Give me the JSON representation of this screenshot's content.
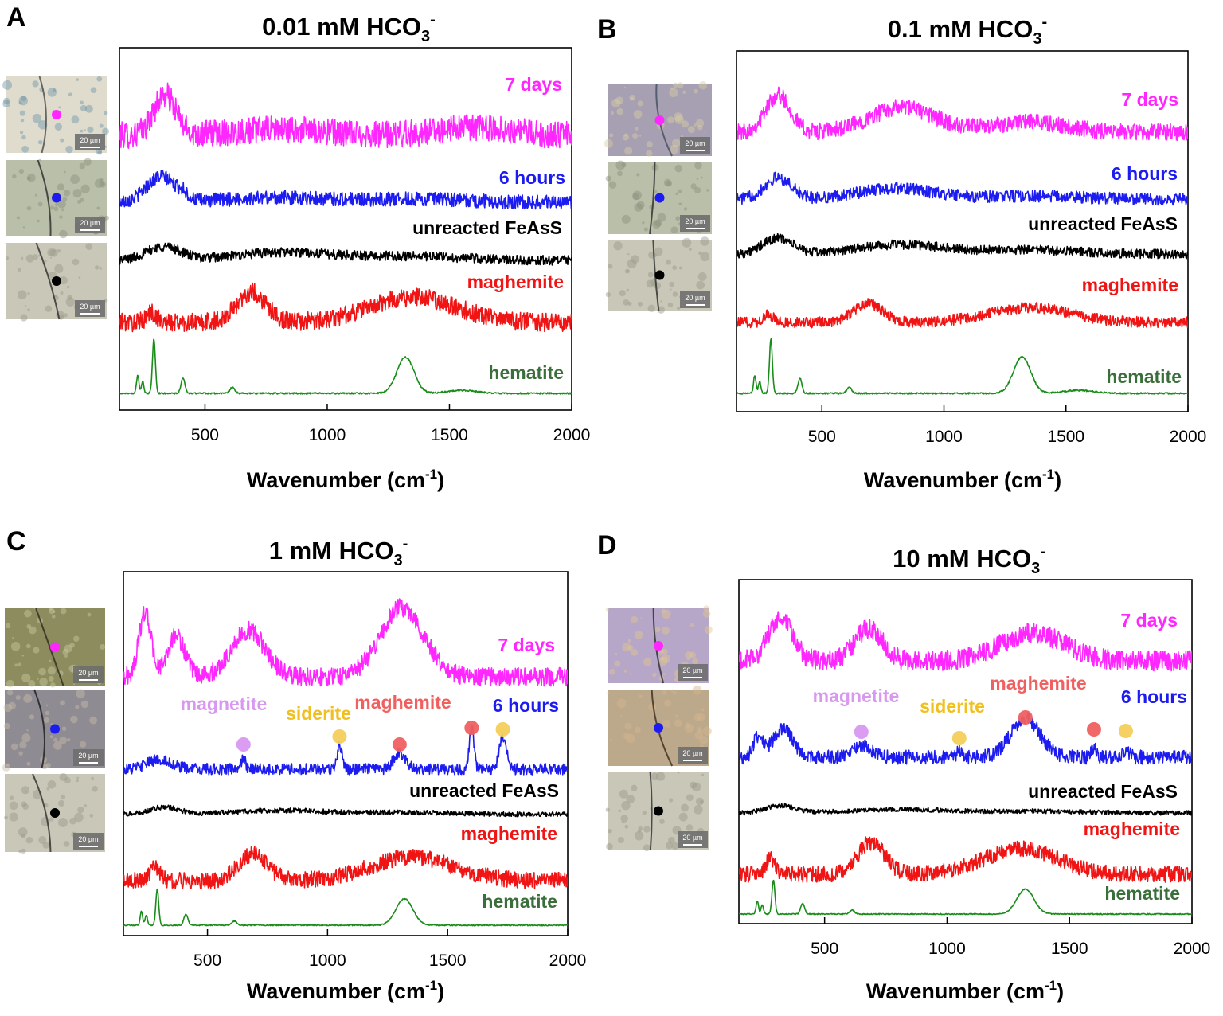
{
  "colors": {
    "7 days": "#ff26ff",
    "6 hours": "#1c1cf0",
    "unreacted FeAsS": "#000000",
    "maghemite": "#f01414",
    "hematite": "#1a8c1a",
    "hematite_label": "#3a6e3a",
    "marker_magnetite": "#d898f0",
    "marker_siderite": "#f3cf5a",
    "marker_maghemite": "#f06060"
  },
  "chart_data": [
    {
      "type": "line",
      "panel": "A",
      "title": "0.01 mM HCO3-",
      "title_main": "0.01 mM HCO",
      "title_sub": "3",
      "title_sup": "-",
      "xlabel_main": "Wavenumber (cm",
      "xlabel_sup": "-1",
      "xlabel_tail": ")",
      "xlim": [
        150,
        2000
      ],
      "xticks": [
        500,
        1000,
        1500,
        2000
      ],
      "y_axis": "arbitrary offset intensity (no ticks)",
      "series": [
        {
          "name": "7 days",
          "peaks": [
            [
              335,
              1.0,
              45
            ],
            [
              800,
              0.15,
              200
            ],
            [
              1600,
              0.2,
              150
            ]
          ],
          "noise": 0.34
        },
        {
          "name": "6 hours",
          "peaks": [
            [
              320,
              0.8,
              60
            ],
            [
              410,
              0.15,
              15
            ],
            [
              800,
              0.15,
              200
            ],
            [
              1350,
              0.1,
              200
            ]
          ],
          "noise": 0.22
        },
        {
          "name": "unreacted FeAsS",
          "peaks": [
            [
              330,
              0.5,
              70
            ],
            [
              830,
              0.3,
              200
            ],
            [
              1350,
              0.15,
              200
            ]
          ],
          "noise": 0.18
        },
        {
          "name": "maghemite",
          "peaks": [
            [
              280,
              0.3,
              20
            ],
            [
              690,
              0.9,
              60
            ],
            [
              1350,
              0.75,
              180
            ]
          ],
          "noise": 0.28
        },
        {
          "name": "hematite",
          "peaks": [
            [
              225,
              0.6,
              5
            ],
            [
              245,
              0.4,
              5
            ],
            [
              291,
              1.8,
              6
            ],
            [
              410,
              0.5,
              8
            ],
            [
              612,
              0.2,
              10
            ],
            [
              1320,
              1.2,
              35
            ],
            [
              1550,
              0.1,
              60
            ]
          ],
          "noise": 0.025
        }
      ],
      "labels": [
        {
          "text": "7 days",
          "series": "7 days"
        },
        {
          "text": "6 hours",
          "series": "6 hours"
        },
        {
          "text": "unreacted FeAsS",
          "series": "unreacted FeAsS"
        },
        {
          "text": "maghemite",
          "series": "maghemite"
        },
        {
          "text": "hematite",
          "series": "hematite"
        }
      ],
      "markers": [],
      "annotations": [],
      "insets": [
        {
          "scale": "20 µm",
          "dot": "7 days",
          "theme": "A1"
        },
        {
          "scale": "20 µm",
          "dot": "6 hours",
          "theme": "A2"
        },
        {
          "scale": "20 µm",
          "dot": "unreacted FeAsS",
          "theme": "A3"
        }
      ]
    },
    {
      "type": "line",
      "panel": "B",
      "title": "0.1 mM HCO3-",
      "title_main": "0.1 mM HCO",
      "title_sub": "3",
      "title_sup": "-",
      "xlabel_main": "Wavenumber (cm",
      "xlabel_sup": "-1",
      "xlabel_tail": ")",
      "xlim": [
        150,
        2000
      ],
      "xticks": [
        500,
        1000,
        1500,
        2000
      ],
      "y_axis": "arbitrary offset intensity (no ticks)",
      "series": [
        {
          "name": "7 days",
          "peaks": [
            [
              320,
              0.9,
              50
            ],
            [
              830,
              0.6,
              130
            ],
            [
              1350,
              0.25,
              150
            ]
          ],
          "noise": 0.2
        },
        {
          "name": "6 hours",
          "peaks": [
            [
              320,
              0.7,
              55
            ],
            [
              800,
              0.35,
              150
            ],
            [
              1350,
              0.1,
              200
            ]
          ],
          "noise": 0.2
        },
        {
          "name": "unreacted FeAsS",
          "peaks": [
            [
              320,
              0.6,
              60
            ],
            [
              820,
              0.35,
              180
            ],
            [
              1350,
              0.15,
              200
            ]
          ],
          "noise": 0.18
        },
        {
          "name": "maghemite",
          "peaks": [
            [
              280,
              0.3,
              20
            ],
            [
              690,
              0.7,
              60
            ],
            [
              1350,
              0.55,
              170
            ]
          ],
          "noise": 0.2
        },
        {
          "name": "hematite",
          "peaks": [
            [
              225,
              0.6,
              5
            ],
            [
              245,
              0.4,
              5
            ],
            [
              291,
              1.8,
              6
            ],
            [
              410,
              0.5,
              8
            ],
            [
              612,
              0.2,
              10
            ],
            [
              1320,
              1.2,
              35
            ],
            [
              1550,
              0.1,
              60
            ]
          ],
          "noise": 0.025
        }
      ],
      "labels": [
        {
          "text": "7 days",
          "series": "7 days"
        },
        {
          "text": "6 hours",
          "series": "6 hours"
        },
        {
          "text": "unreacted FeAsS",
          "series": "unreacted FeAsS"
        },
        {
          "text": "maghemite",
          "series": "maghemite"
        },
        {
          "text": "hematite",
          "series": "hematite"
        }
      ],
      "markers": [],
      "annotations": [],
      "insets": [
        {
          "scale": "20 µm",
          "dot": "7 days",
          "theme": "B1"
        },
        {
          "scale": "20 µm",
          "dot": "6 hours",
          "theme": "A2"
        },
        {
          "scale": "20 µm",
          "dot": "unreacted FeAsS",
          "theme": "A3"
        }
      ]
    },
    {
      "type": "line",
      "panel": "C",
      "title": "1 mM HCO3-",
      "title_main": "1 mM HCO",
      "title_sub": "3",
      "title_sup": "-",
      "xlabel_main": "Wavenumber (cm",
      "xlabel_sup": "-1",
      "xlabel_tail": ")",
      "xlim": [
        150,
        2000
      ],
      "xticks": [
        500,
        1000,
        1500,
        2000
      ],
      "y_axis": "arbitrary offset intensity (no ticks)",
      "series": [
        {
          "name": "7 days",
          "peaks": [
            [
              240,
              1.4,
              25
            ],
            [
              370,
              0.9,
              35
            ],
            [
              670,
              1.0,
              70
            ],
            [
              1310,
              1.5,
              90
            ]
          ],
          "noise": 0.2
        },
        {
          "name": "6 hours",
          "peaks": [
            [
              300,
              0.3,
              50
            ],
            [
              650,
              0.35,
              8
            ],
            [
              1050,
              0.8,
              10
            ],
            [
              1300,
              0.5,
              25
            ],
            [
              1600,
              1.3,
              10
            ],
            [
              1730,
              1.0,
              15
            ]
          ],
          "noise": 0.18
        },
        {
          "name": "unreacted FeAsS",
          "peaks": [
            [
              320,
              0.35,
              60
            ],
            [
              800,
              0.2,
              200
            ],
            [
              1350,
              0.1,
              200
            ]
          ],
          "noise": 0.12
        },
        {
          "name": "maghemite",
          "peaks": [
            [
              280,
              0.4,
              20
            ],
            [
              690,
              0.8,
              60
            ],
            [
              1350,
              0.7,
              170
            ]
          ],
          "noise": 0.25
        },
        {
          "name": "hematite",
          "peaks": [
            [
              225,
              0.5,
              5
            ],
            [
              245,
              0.35,
              5
            ],
            [
              291,
              1.3,
              6
            ],
            [
              410,
              0.4,
              8
            ],
            [
              612,
              0.15,
              10
            ],
            [
              1320,
              0.95,
              35
            ]
          ],
          "noise": 0.02
        }
      ],
      "labels": [
        {
          "text": "7 days",
          "series": "7 days"
        },
        {
          "text": "6 hours",
          "series": "6 hours"
        },
        {
          "text": "unreacted FeAsS",
          "series": "unreacted FeAsS"
        },
        {
          "text": "maghemite",
          "series": "maghemite"
        },
        {
          "text": "hematite",
          "series": "hematite"
        }
      ],
      "markers": [
        {
          "mineral": "magnetite",
          "x": 650
        },
        {
          "mineral": "siderite",
          "x": 1050
        },
        {
          "mineral": "maghemite",
          "x": 1300
        },
        {
          "mineral": "maghemite",
          "x": 1600
        },
        {
          "mineral": "siderite",
          "x": 1730
        }
      ],
      "annotations": [
        {
          "text": "magnetite",
          "mineral": "magnetite"
        },
        {
          "text": "siderite",
          "mineral": "siderite"
        },
        {
          "text": "maghemite",
          "mineral": "maghemite"
        }
      ],
      "insets": [
        {
          "scale": "20 µm",
          "dot": "7 days",
          "theme": "C1"
        },
        {
          "scale": "20 µm",
          "dot": "6 hours",
          "theme": "C2"
        },
        {
          "scale": "20 µm",
          "dot": "unreacted FeAsS",
          "theme": "A3"
        }
      ]
    },
    {
      "type": "line",
      "panel": "D",
      "title": "10 mM HCO3-",
      "title_main": "10 mM HCO",
      "title_sub": "3",
      "title_sup": "-",
      "xlabel_main": "Wavenumber (cm",
      "xlabel_sup": "-1",
      "xlabel_tail": ")",
      "xlim": [
        150,
        2000
      ],
      "xticks": [
        500,
        1000,
        1500,
        2000
      ],
      "y_axis": "arbitrary offset intensity (no ticks)",
      "series": [
        {
          "name": "7 days",
          "peaks": [
            [
              320,
              0.9,
              50
            ],
            [
              680,
              0.7,
              55
            ],
            [
              1350,
              0.6,
              130
            ]
          ],
          "noise": 0.22
        },
        {
          "name": "6 hours",
          "peaks": [
            [
              230,
              0.6,
              20
            ],
            [
              330,
              0.8,
              40
            ],
            [
              650,
              0.35,
              40
            ],
            [
              1050,
              0.2,
              10
            ],
            [
              1320,
              1.1,
              60
            ],
            [
              1600,
              0.3,
              10
            ],
            [
              1730,
              0.2,
              15
            ]
          ],
          "noise": 0.2
        },
        {
          "name": "unreacted FeAsS",
          "peaks": [
            [
              320,
              0.4,
              60
            ],
            [
              800,
              0.2,
              200
            ],
            [
              1350,
              0.1,
              200
            ]
          ],
          "noise": 0.13
        },
        {
          "name": "maghemite",
          "peaks": [
            [
              280,
              0.5,
              20
            ],
            [
              690,
              1.0,
              55
            ],
            [
              1300,
              0.8,
              150
            ]
          ],
          "noise": 0.25
        },
        {
          "name": "hematite",
          "peaks": [
            [
              225,
              0.5,
              5
            ],
            [
              245,
              0.35,
              5
            ],
            [
              291,
              1.3,
              6
            ],
            [
              410,
              0.4,
              8
            ],
            [
              612,
              0.15,
              10
            ],
            [
              1320,
              0.95,
              35
            ]
          ],
          "noise": 0.02
        }
      ],
      "labels": [
        {
          "text": "7 days",
          "series": "7 days"
        },
        {
          "text": "6 hours",
          "series": "6 hours"
        },
        {
          "text": "unreacted FeAsS",
          "series": "unreacted FeAsS"
        },
        {
          "text": "maghemite",
          "series": "maghemite"
        },
        {
          "text": "hematite",
          "series": "hematite"
        }
      ],
      "markers": [
        {
          "mineral": "magnetite",
          "x": 650
        },
        {
          "mineral": "siderite",
          "x": 1050
        },
        {
          "mineral": "maghemite",
          "x": 1320
        },
        {
          "mineral": "maghemite",
          "x": 1600
        },
        {
          "mineral": "siderite",
          "x": 1730
        }
      ],
      "annotations": [
        {
          "text": "magnetite",
          "mineral": "magnetite"
        },
        {
          "text": "siderite",
          "mineral": "siderite"
        },
        {
          "text": "maghemite",
          "mineral": "maghemite"
        }
      ],
      "insets": [
        {
          "scale": "20 µm",
          "dot": "7 days",
          "theme": "D1"
        },
        {
          "scale": "20 µm",
          "dot": "6 hours",
          "theme": "D2"
        },
        {
          "scale": "20 µm",
          "dot": "unreacted FeAsS",
          "theme": "A3"
        }
      ]
    }
  ]
}
